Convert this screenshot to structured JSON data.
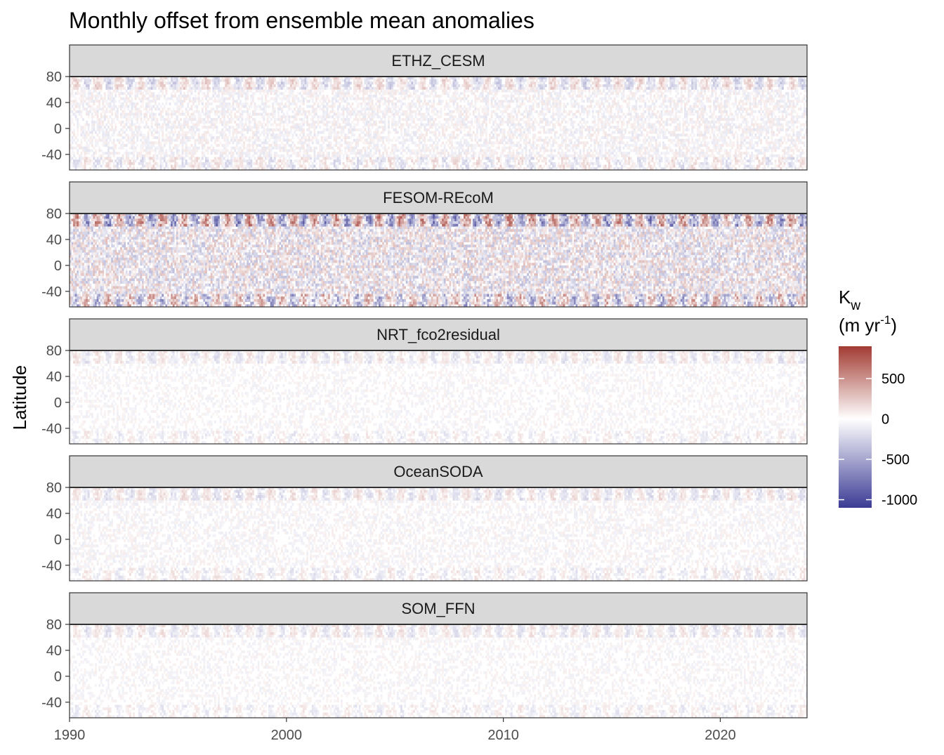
{
  "chart_data": {
    "type": "heatmap",
    "title": "Monthly offset from ensemble mean anomalies",
    "ylabel": "Latitude",
    "xlabel": "",
    "x_ticks": [
      1990,
      2000,
      2010,
      2020
    ],
    "xlim": [
      1990,
      2024
    ],
    "y_ticks": [
      80,
      40,
      0,
      -40
    ],
    "ylim": [
      -64,
      80
    ],
    "panels": [
      {
        "name": "ETHZ_CESM",
        "intensity": 0.22
      },
      {
        "name": "FESOM-REcoM",
        "intensity": 0.55
      },
      {
        "name": "NRT_fco2residual",
        "intensity": 0.14
      },
      {
        "name": "OceanSODA",
        "intensity": 0.16
      },
      {
        "name": "SOM_FFN",
        "intensity": 0.14
      }
    ],
    "legend": {
      "title_main": "K",
      "title_sub": "w",
      "title_units": "(m yr",
      "title_sup": "-1",
      "title_close": ")",
      "ticks": [
        500,
        0,
        -500,
        -1000
      ],
      "tick_labels": [
        "500",
        "0",
        "-500",
        "-1000"
      ],
      "range": [
        -1100,
        900
      ],
      "colors": {
        "low": "#3b3b95",
        "mid": "#ffffff",
        "high": "#a23b32"
      }
    }
  }
}
